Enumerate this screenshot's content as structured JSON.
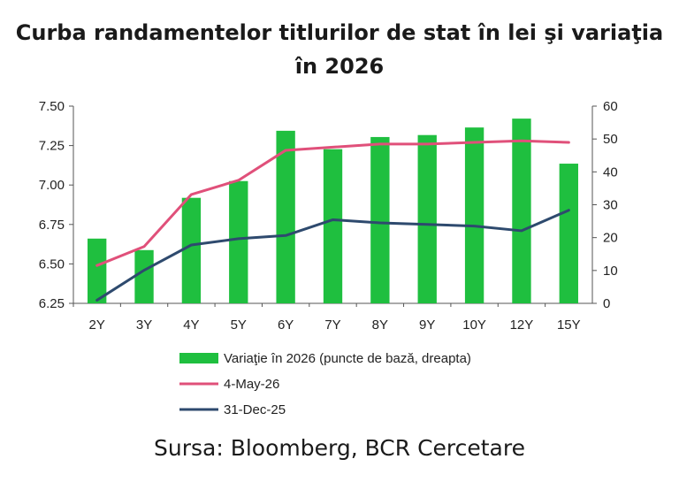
{
  "chart_data": {
    "type": "bar",
    "title_lines": [
      "Curba randamentelor titlurilor de stat în lei şi variaţia",
      "în 2026"
    ],
    "categories": [
      "2Y",
      "3Y",
      "4Y",
      "5Y",
      "6Y",
      "7Y",
      "8Y",
      "9Y",
      "10Y",
      "12Y",
      "15Y"
    ],
    "left_axis": {
      "min": 6.25,
      "max": 7.5,
      "ticks": [
        "6.25",
        "6.50",
        "6.75",
        "7.00",
        "7.25",
        "7.50"
      ]
    },
    "right_axis": {
      "min": 0,
      "max": 60,
      "ticks": [
        "0",
        "10",
        "20",
        "30",
        "40",
        "50",
        "60"
      ]
    },
    "grid": false,
    "legend_position": "bottom",
    "series": [
      {
        "name": "Variaţie în 2026 (puncte de bază, dreapta)",
        "kind": "bar",
        "axis": "right",
        "color": "#1fbf3f",
        "values": [
          19.7,
          16.2,
          32.1,
          37.2,
          52.5,
          46.9,
          50.6,
          51.2,
          53.5,
          56.2,
          42.5
        ]
      },
      {
        "name": "4-May-26",
        "kind": "line",
        "axis": "left",
        "color": "#e0507a",
        "values": [
          6.49,
          6.61,
          6.94,
          7.03,
          7.22,
          7.24,
          7.26,
          7.26,
          7.27,
          7.28,
          7.27
        ]
      },
      {
        "name": "31-Dec-25",
        "kind": "line",
        "axis": "left",
        "color": "#2e4a6e",
        "values": [
          6.27,
          6.46,
          6.62,
          6.66,
          6.68,
          6.78,
          6.76,
          6.75,
          6.74,
          6.71,
          6.84
        ]
      }
    ]
  },
  "source": "Sursa: Bloomberg, BCR Cercetare"
}
